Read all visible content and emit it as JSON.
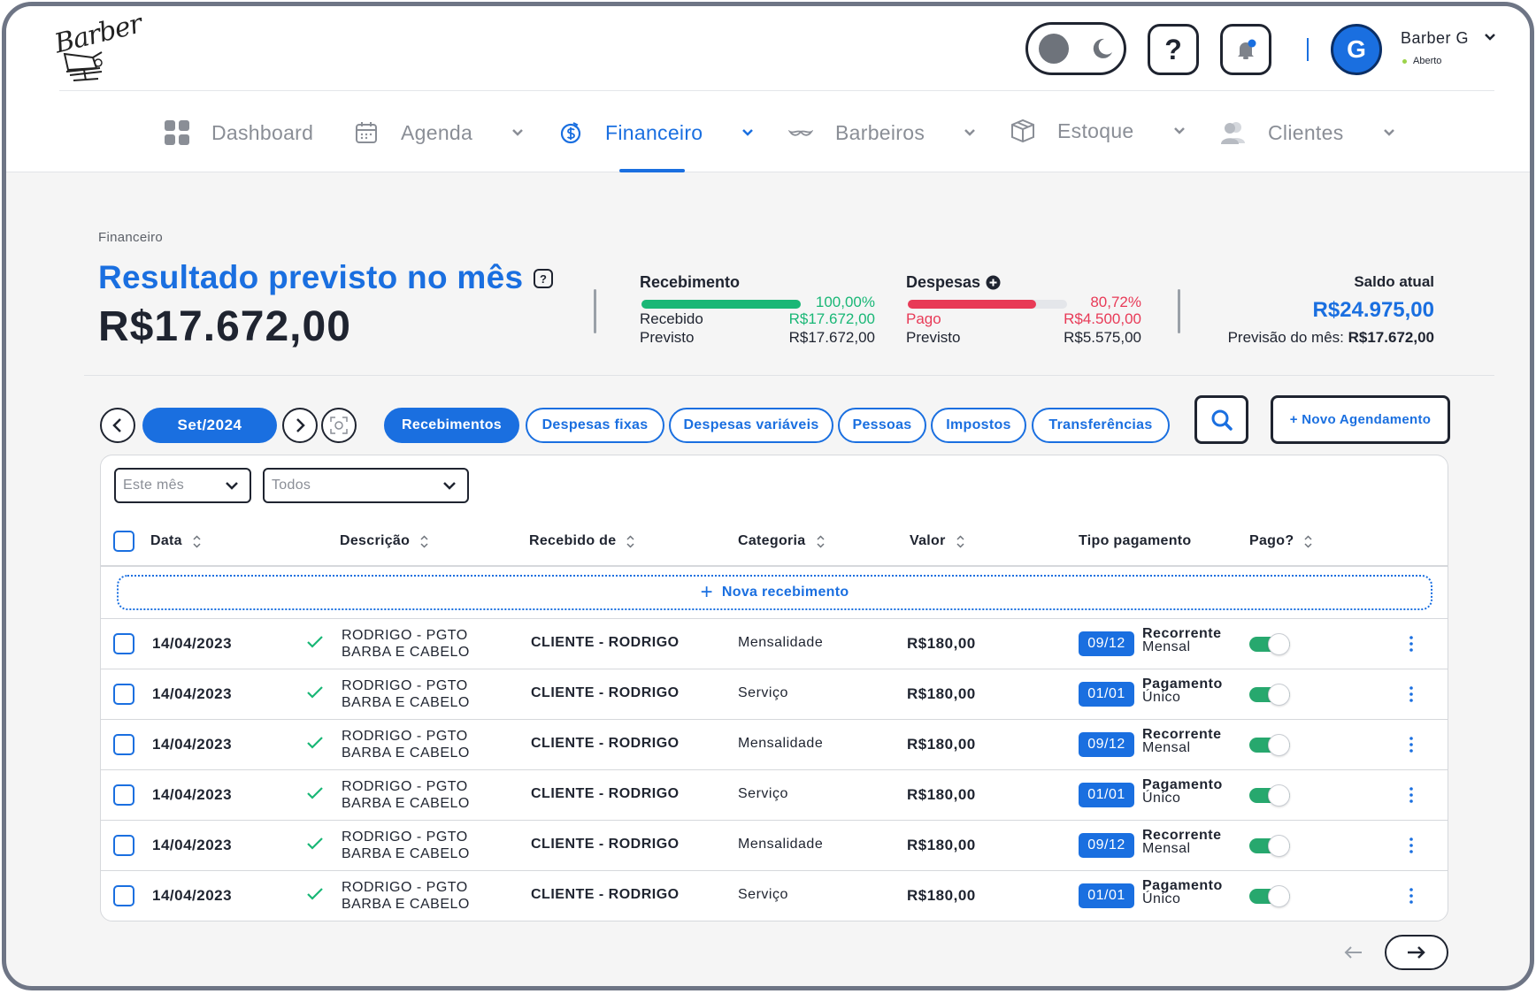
{
  "app": {
    "logo_text": "Barber"
  },
  "user": {
    "name": "Barber G",
    "status": "Aberto",
    "initial": "G"
  },
  "header": {
    "help_label": "?"
  },
  "nav": {
    "items": [
      {
        "label": "Dashboard",
        "icon": "dashboard-grid-icon",
        "has_dropdown": false,
        "active": false
      },
      {
        "label": "Agenda",
        "icon": "calendar-icon",
        "has_dropdown": true,
        "active": false
      },
      {
        "label": "Financeiro",
        "icon": "dollar-circle-icon",
        "has_dropdown": true,
        "active": true
      },
      {
        "label": "Barbeiros",
        "icon": "mustache-icon",
        "has_dropdown": true,
        "active": false
      },
      {
        "label": "Estoque",
        "icon": "box-icon",
        "has_dropdown": true,
        "active": false
      },
      {
        "label": "Clientes",
        "icon": "users-icon",
        "has_dropdown": true,
        "active": false
      }
    ]
  },
  "summary": {
    "breadcrumb": "Financeiro",
    "title": "Resultado previsto no mês",
    "help": "?",
    "value": "R$17.672,00",
    "recebimento": {
      "title": "Recebimento",
      "percent": "100,00%",
      "progress": 1.0,
      "row1_label": "Recebido",
      "row1_value": "R$17.672,00",
      "row2_label": "Previsto",
      "row2_value": "R$17.672,00"
    },
    "despesas": {
      "title": "Despesas",
      "percent": "80,72%",
      "progress": 0.8072,
      "row1_label": "Pago",
      "row1_value": "R$4.500,00",
      "row2_label": "Previsto",
      "row2_value": "R$5.575,00"
    },
    "saldo": {
      "label": "Saldo atual",
      "value": "R$24.975,00",
      "forecast_label": "Previsão do mês: ",
      "forecast_value": "R$17.672,00"
    }
  },
  "filters": {
    "month": "Set/2024",
    "tabs": [
      "Recebimentos",
      "Despesas fixas",
      "Despesas variáveis",
      "Pessoas",
      "Impostos",
      "Transferências"
    ],
    "active_tab": "Recebimentos",
    "new_button": "+ Novo Agendamento",
    "period_select": "Este mês",
    "status_select": "Todos"
  },
  "table": {
    "columns": [
      "Data",
      "Descrição",
      "Recebido de",
      "Categoria",
      "Valor",
      "Tipo pagamento",
      "Pago?"
    ],
    "new_row_label": "Nova recebimento",
    "rows": [
      {
        "date": "14/04/2023",
        "desc1": "RODRIGO - PGTO",
        "desc2": "BARBA E CABELO",
        "from": "CLIENTE - RODRIGO",
        "category": "Mensalidade",
        "value": "R$180,00",
        "installment": "09/12",
        "ptype1": "Recorrente",
        "ptype2": "Mensal",
        "paid": true
      },
      {
        "date": "14/04/2023",
        "desc1": "RODRIGO - PGTO",
        "desc2": "BARBA E CABELO",
        "from": "CLIENTE - RODRIGO",
        "category": "Serviço",
        "value": "R$180,00",
        "installment": "01/01",
        "ptype1": "Pagamento",
        "ptype2": "Único",
        "paid": true
      },
      {
        "date": "14/04/2023",
        "desc1": "RODRIGO - PGTO",
        "desc2": "BARBA E CABELO",
        "from": "CLIENTE - RODRIGO",
        "category": "Mensalidade",
        "value": "R$180,00",
        "installment": "09/12",
        "ptype1": "Recorrente",
        "ptype2": "Mensal",
        "paid": true
      },
      {
        "date": "14/04/2023",
        "desc1": "RODRIGO - PGTO",
        "desc2": "BARBA E CABELO",
        "from": "CLIENTE - RODRIGO",
        "category": "Serviço",
        "value": "R$180,00",
        "installment": "01/01",
        "ptype1": "Pagamento",
        "ptype2": "Único",
        "paid": true
      },
      {
        "date": "14/04/2023",
        "desc1": "RODRIGO - PGTO",
        "desc2": "BARBA E CABELO",
        "from": "CLIENTE - RODRIGO",
        "category": "Mensalidade",
        "value": "R$180,00",
        "installment": "09/12",
        "ptype1": "Recorrente",
        "ptype2": "Mensal",
        "paid": true
      },
      {
        "date": "14/04/2023",
        "desc1": "RODRIGO - PGTO",
        "desc2": "BARBA E CABELO",
        "from": "CLIENTE - RODRIGO",
        "category": "Serviço",
        "value": "R$180,00",
        "installment": "01/01",
        "ptype1": "Pagamento",
        "ptype2": "Único",
        "paid": true
      }
    ]
  },
  "colors": {
    "accent": "#1a6fe0",
    "success": "#19b776",
    "danger": "#e83a57",
    "text": "#1f2430",
    "muted": "#8a8e96"
  }
}
